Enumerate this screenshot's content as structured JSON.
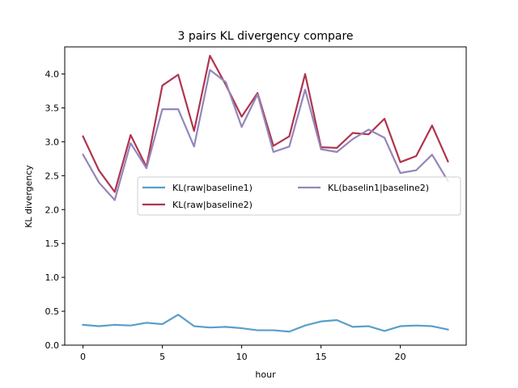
{
  "chart_data": {
    "type": "line",
    "title": "3 pairs KL divergency compare",
    "xlabel": "hour",
    "ylabel": "KL divergency",
    "xlim": [
      -1.15,
      24.15
    ],
    "ylim": [
      0,
      4.4
    ],
    "xticks": [
      0,
      5,
      10,
      15,
      20
    ],
    "yticks": [
      0.0,
      0.5,
      1.0,
      1.5,
      2.0,
      2.5,
      3.0,
      3.5,
      4.0
    ],
    "ytick_labels": [
      "0.0",
      "0.5",
      "1.0",
      "1.5",
      "2.0",
      "2.5",
      "3.0",
      "3.5",
      "4.0"
    ],
    "grid": false,
    "legend_placement": "center-right",
    "x": [
      0,
      1,
      2,
      3,
      4,
      5,
      6,
      7,
      8,
      9,
      10,
      11,
      12,
      13,
      14,
      15,
      16,
      17,
      18,
      19,
      20,
      21,
      22,
      23
    ],
    "series": [
      {
        "name": "KL(raw|baseline1)",
        "color": "#5a9ec9",
        "values": [
          0.3,
          0.28,
          0.3,
          0.29,
          0.33,
          0.31,
          0.45,
          0.28,
          0.26,
          0.27,
          0.25,
          0.22,
          0.22,
          0.2,
          0.29,
          0.35,
          0.37,
          0.27,
          0.28,
          0.21,
          0.28,
          0.29,
          0.28,
          0.23
        ]
      },
      {
        "name": "KL(raw|baseline2)",
        "color": "#b0344f",
        "values": [
          3.08,
          2.58,
          2.26,
          3.1,
          2.63,
          3.83,
          3.99,
          3.16,
          4.27,
          3.84,
          3.37,
          3.72,
          2.94,
          3.08,
          4.0,
          2.92,
          2.91,
          3.13,
          3.11,
          3.34,
          2.7,
          2.79,
          3.24,
          2.71
        ]
      },
      {
        "name": "KL(baselin1|baseline2)",
        "color": "#9486ba",
        "values": [
          2.81,
          2.4,
          2.14,
          2.98,
          2.61,
          3.48,
          3.48,
          2.93,
          4.06,
          3.88,
          3.22,
          3.7,
          2.85,
          2.93,
          3.77,
          2.89,
          2.85,
          3.04,
          3.18,
          3.06,
          2.54,
          2.58,
          2.81,
          2.42
        ]
      }
    ]
  }
}
